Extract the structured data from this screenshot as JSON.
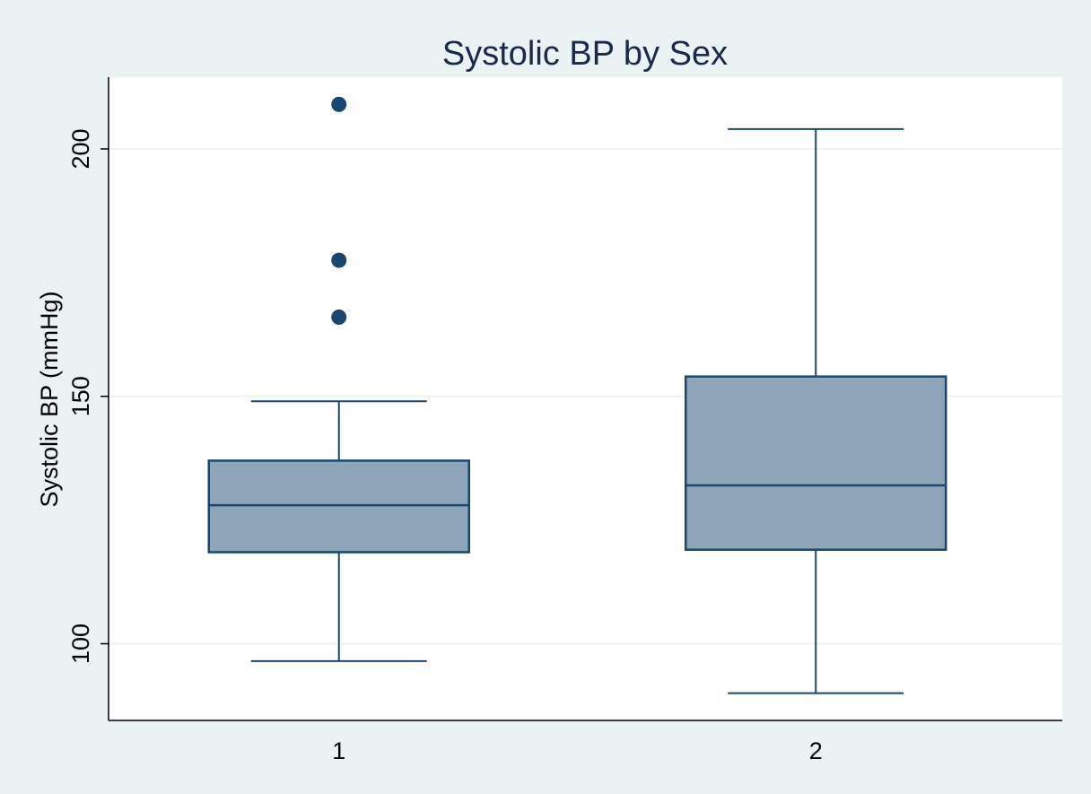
{
  "chart_data": {
    "type": "box",
    "title": "Systolic BP by Sex",
    "xlabel": "",
    "ylabel": "Systolic BP (mmHg)",
    "categories": [
      "1",
      "2"
    ],
    "ylim": [
      84.5,
      214.5
    ],
    "yticks": [
      100,
      150,
      200
    ],
    "grid": true,
    "boxes": [
      {
        "category": "1",
        "whisker_low": 96.5,
        "q1": 118.5,
        "median": 128,
        "q3": 137,
        "whisker_high": 149,
        "outliers": [
          166,
          177.5,
          209
        ]
      },
      {
        "category": "2",
        "whisker_low": 90,
        "q1": 119,
        "median": 132,
        "q3": 154,
        "whisker_high": 204,
        "outliers": []
      }
    ],
    "colors": {
      "background": "#eaf2f3",
      "plot_area": "#ffffff",
      "box_fill": "#8ea4b8",
      "stroke": "#1a476f",
      "grid": "#eaf2f3",
      "text": "#000000",
      "title": "#1a2a4a"
    }
  }
}
